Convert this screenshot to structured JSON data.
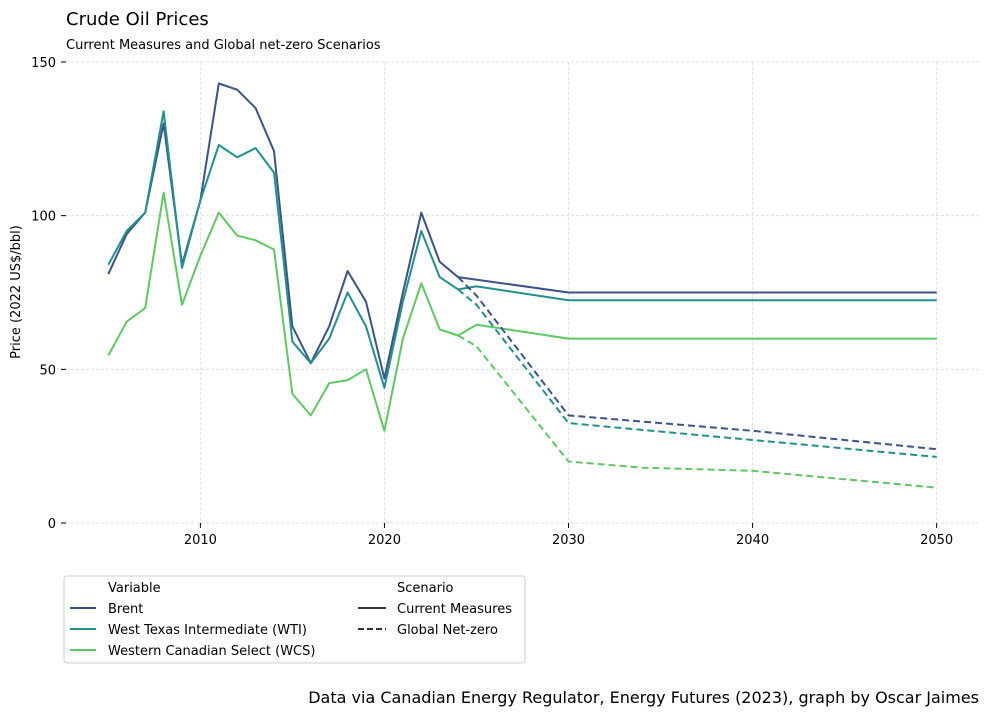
{
  "chart_data": {
    "type": "line",
    "title": "Crude Oil Prices",
    "subtitle": "Current Measures and Global net-zero Scenarios",
    "xlabel": "",
    "ylabel": "Price (2022 US$/bbl)",
    "xlim": [
      2002.7,
      2052.3
    ],
    "ylim": [
      0,
      150
    ],
    "xticks": [
      2010,
      2020,
      2030,
      2040,
      2050
    ],
    "yticks": [
      0,
      50,
      100,
      150
    ],
    "grid": true,
    "legend_placement": "bottom-left",
    "credit": "Data via Canadian Energy Regulator, Energy Futures (2023), graph by Oscar Jaimes",
    "legend": {
      "variable_header": "Variable",
      "scenario_header": "Scenario",
      "variables": [
        {
          "label": "Brent",
          "color": "#3b528b"
        },
        {
          "label": "West Texas Intermediate (WTI)",
          "color": "#21918c"
        },
        {
          "label": "Western Canadian Select (WCS)",
          "color": "#5ec962"
        }
      ],
      "scenarios": [
        {
          "label": "Current Measures",
          "dash": "solid",
          "color": "#333333"
        },
        {
          "label": "Global Net-zero",
          "dash": "dashed",
          "color": "#333333"
        }
      ]
    },
    "series": [
      {
        "name": "Brent",
        "scenario": "Current Measures",
        "color": "#3b528b",
        "dash": "solid",
        "x": [
          2005,
          2006,
          2007,
          2008,
          2009,
          2010,
          2011,
          2012,
          2013,
          2014,
          2015,
          2016,
          2017,
          2018,
          2019,
          2020,
          2021,
          2022,
          2023,
          2024,
          2030,
          2050
        ],
        "y": [
          81,
          94,
          101,
          130,
          84,
          105,
          143,
          141,
          135,
          121,
          64,
          52,
          64,
          82,
          72,
          47,
          75,
          101,
          85,
          80,
          75,
          75
        ]
      },
      {
        "name": "West Texas Intermediate (WTI)",
        "scenario": "Current Measures",
        "color": "#21918c",
        "dash": "solid",
        "x": [
          2005,
          2006,
          2007,
          2008,
          2009,
          2010,
          2011,
          2012,
          2013,
          2014,
          2015,
          2016,
          2017,
          2018,
          2019,
          2020,
          2021,
          2022,
          2023,
          2024,
          2025,
          2030,
          2050
        ],
        "y": [
          84,
          95,
          101,
          134,
          83,
          105,
          123,
          119,
          122,
          114,
          59,
          52,
          60,
          75,
          64,
          44,
          72,
          95,
          80,
          76,
          77,
          72.5,
          72.5
        ]
      },
      {
        "name": "Western Canadian Select (WCS)",
        "scenario": "Current Measures",
        "color": "#5ec962",
        "dash": "solid",
        "x": [
          2005,
          2006,
          2007,
          2008,
          2009,
          2010,
          2011,
          2012,
          2013,
          2014,
          2015,
          2016,
          2017,
          2018,
          2019,
          2020,
          2021,
          2022,
          2023,
          2024,
          2025,
          2030,
          2050
        ],
        "y": [
          54.5,
          65.5,
          70,
          107.5,
          71,
          87,
          101,
          93.5,
          92,
          89,
          42,
          35,
          45.5,
          46.5,
          50,
          30,
          60,
          78,
          63,
          61,
          64.5,
          60,
          60
        ]
      },
      {
        "name": "Brent",
        "scenario": "Global Net-zero",
        "color": "#3b528b",
        "dash": "dashed",
        "x": [
          2024,
          2025,
          2030,
          2040,
          2050
        ],
        "y": [
          80,
          74,
          35,
          30,
          24
        ]
      },
      {
        "name": "West Texas Intermediate (WTI)",
        "scenario": "Global Net-zero",
        "color": "#21918c",
        "dash": "dashed",
        "x": [
          2024,
          2025,
          2030,
          2040,
          2050
        ],
        "y": [
          76,
          71,
          32.5,
          27,
          21.5
        ]
      },
      {
        "name": "Western Canadian Select (WCS)",
        "scenario": "Global Net-zero",
        "color": "#5ec962",
        "dash": "dashed",
        "x": [
          2024,
          2025,
          2030,
          2034,
          2040,
          2050
        ],
        "y": [
          61,
          57.5,
          20,
          18,
          17,
          11.5
        ]
      }
    ]
  }
}
